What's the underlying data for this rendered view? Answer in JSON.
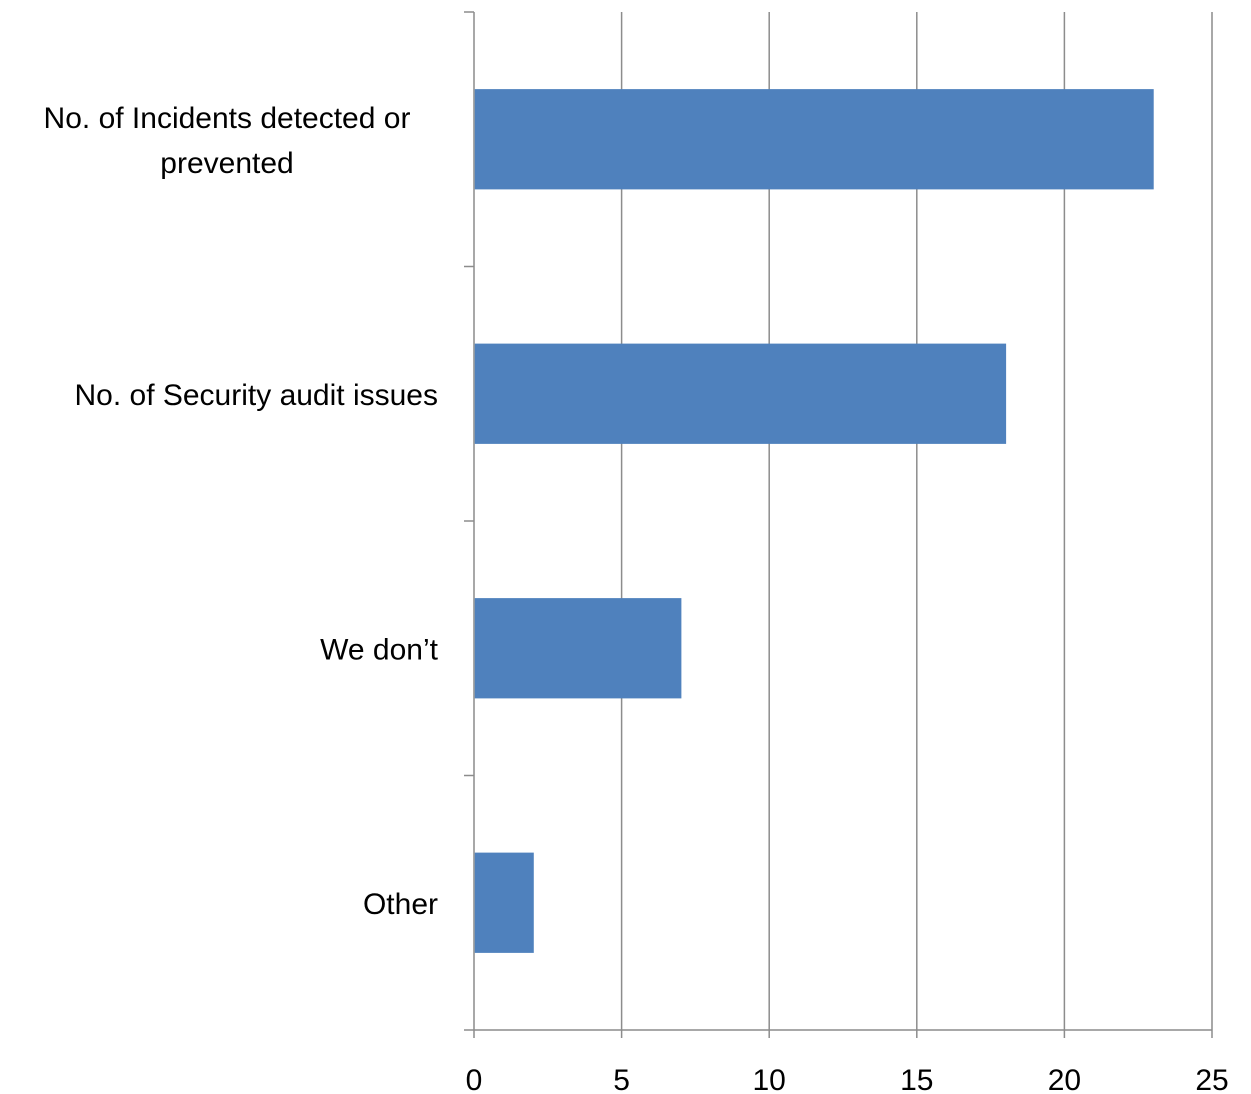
{
  "chart_data": {
    "type": "bar",
    "orientation": "horizontal",
    "categories": [
      "No. of Incidents detected or prevented",
      "No. of Security audit issues",
      "We don’t",
      "Other"
    ],
    "category_label_lines": [
      [
        "No. of Incidents detected or",
        "prevented"
      ],
      [
        "No. of Security audit issues"
      ],
      [
        "We don’t"
      ],
      [
        "Other"
      ]
    ],
    "values": [
      23,
      18,
      7,
      2
    ],
    "xlim": [
      0,
      25
    ],
    "x_ticks": [
      0,
      5,
      10,
      15,
      20,
      25
    ],
    "grid": "vertical",
    "title": "",
    "xlabel": "",
    "ylabel": "",
    "colors": {
      "bar": "#4f81bd",
      "grid": "#8c8c8c",
      "axis": "#8c8c8c"
    }
  }
}
